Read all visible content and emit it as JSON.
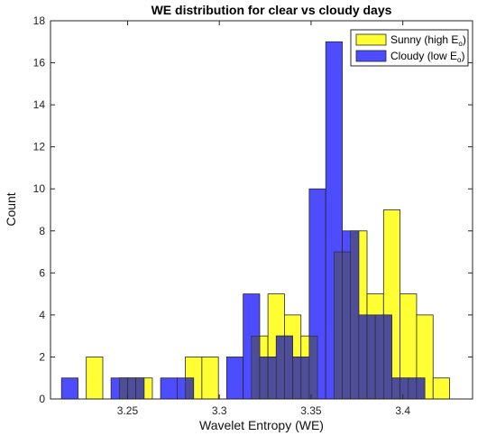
{
  "chart_data": {
    "type": "bar",
    "title": "WE distribution for clear vs cloudy days",
    "xlabel": "Wavelet Entropy (WE)",
    "ylabel": "Count",
    "xlim": [
      3.208,
      3.438
    ],
    "ylim": [
      0,
      18
    ],
    "xticks": [
      3.25,
      3.3,
      3.35,
      3.4
    ],
    "xtick_labels": [
      "3.25",
      "3.3",
      "3.35",
      "3.4"
    ],
    "yticks": [
      0,
      2,
      4,
      6,
      8,
      10,
      12,
      14,
      16,
      18
    ],
    "ytick_labels": [
      "0",
      "2",
      "4",
      "6",
      "8",
      "10",
      "12",
      "14",
      "16",
      "18"
    ],
    "grid": false,
    "legend_position": "top-right",
    "legend": {
      "sunny_prefix": "Sunny  (high  E",
      "cloudy_prefix": "Cloudy  (low  E",
      "subscript": "o",
      "suffix": ")"
    },
    "series": [
      {
        "name": "Sunny (high E_o)",
        "color": "#ffff33",
        "bin_width": 0.009,
        "bin_left_edges": [
          3.2275,
          3.2365,
          3.2455,
          3.2545,
          3.2635,
          3.2725,
          3.2815,
          3.2905,
          3.2995,
          3.3085,
          3.3175,
          3.3265,
          3.3355,
          3.3445,
          3.3535,
          3.3625,
          3.3715,
          3.3805,
          3.3895,
          3.3985,
          3.4075,
          3.4165
        ],
        "values": [
          2,
          0,
          1,
          1,
          0,
          0,
          2,
          2,
          0,
          0,
          3,
          5,
          4,
          3,
          0,
          7,
          8,
          5,
          9,
          5,
          4,
          1
        ]
      },
      {
        "name": "Cloudy (low E_o)",
        "color": "#4d4dff",
        "bin_width": 0.009,
        "bin_left_edges": [
          3.214,
          3.223,
          3.232,
          3.241,
          3.25,
          3.259,
          3.268,
          3.277,
          3.286,
          3.295,
          3.304,
          3.313,
          3.322,
          3.331,
          3.34,
          3.349,
          3.358,
          3.367,
          3.376,
          3.385,
          3.394,
          3.403
        ],
        "values": [
          1,
          0,
          0,
          1,
          1,
          0,
          1,
          1,
          0,
          0,
          2,
          5,
          2,
          3,
          2,
          10,
          17,
          8,
          4,
          4,
          1,
          1
        ]
      }
    ],
    "overlap_color": "#4d4d99"
  }
}
